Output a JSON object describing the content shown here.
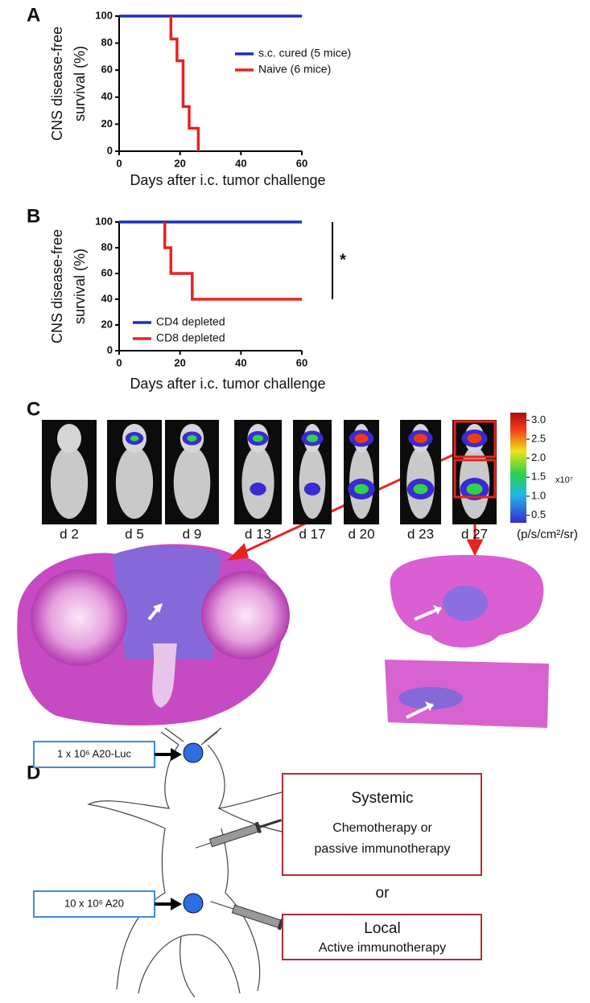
{
  "panel_labels": [
    "A",
    "B",
    "C",
    "D"
  ],
  "chart_data": [
    {
      "type": "line",
      "ylabel": [
        "CNS disease-free",
        "survival (%)"
      ],
      "xlabel": "Days after i.c. tumor challenge",
      "xlim": [
        0,
        60
      ],
      "xticks": [
        0,
        20,
        40,
        60
      ],
      "ylim": [
        0,
        100
      ],
      "yticks": [
        0,
        20,
        40,
        60,
        80,
        100
      ],
      "legend": "upper right",
      "series": [
        {
          "name": "s.c. cured (5 mice)",
          "color": "#1f2fb8",
          "x": [
            0,
            60
          ],
          "values": [
            100,
            100
          ]
        },
        {
          "name": "Naive (6 mice)",
          "color": "#e8231f",
          "x": [
            17,
            17,
            19,
            19,
            21,
            21,
            23,
            23,
            26,
            26
          ],
          "values": [
            100,
            83,
            83,
            67,
            67,
            33,
            33,
            17,
            17,
            0
          ]
        }
      ]
    },
    {
      "type": "line",
      "ylabel": [
        "CNS disease-free",
        "survival (%)"
      ],
      "xlabel": "Days after i.c. tumor challenge",
      "xlim": [
        0,
        60
      ],
      "xticks": [
        0,
        20,
        40,
        60
      ],
      "ylim": [
        0,
        100
      ],
      "yticks": [
        0,
        20,
        40,
        60,
        80,
        100
      ],
      "legend": "lower left",
      "bracket": [
        100,
        40
      ],
      "annotation": "*",
      "series": [
        {
          "name": "CD4 depleted",
          "color": "#1f2fb8",
          "x": [
            0,
            60
          ],
          "values": [
            100,
            100
          ]
        },
        {
          "name": "CD8 depleted",
          "color": "#e8231f",
          "x": [
            15,
            15,
            17,
            17,
            24,
            24,
            60
          ],
          "values": [
            100,
            80,
            80,
            60,
            60,
            40,
            40
          ]
        }
      ]
    }
  ],
  "imaging": {
    "days": [
      "d 2",
      "d 5",
      "d 9",
      "d 13",
      "d 17",
      "d 20",
      "d 23",
      "d 27"
    ],
    "colorbar": {
      "lim": [
        0.3,
        3.2
      ],
      "ticks": [
        {
          "value": 3.0,
          "label": "3.0"
        },
        {
          "value": 2.5,
          "label": "2.5"
        },
        {
          "value": 2.0,
          "label": "2.0"
        },
        {
          "value": 1.5,
          "label": "1.5"
        },
        {
          "value": 1.0,
          "label": "1.0"
        },
        {
          "value": 0.5,
          "label": "0.5"
        }
      ],
      "exponent": "x10⁷",
      "unit": "(p/s/cm²/sr)"
    }
  },
  "diagram": {
    "inputs": [
      "1 x 10⁶ A20-Luc",
      "10 x 10⁶ A20"
    ],
    "systemic": {
      "title": "Systemic",
      "lines": [
        "Chemotherapy or",
        "passive immunotherapy"
      ]
    },
    "or": "or",
    "local": {
      "title": "Local",
      "lines": [
        "Active immunotherapy"
      ]
    }
  }
}
